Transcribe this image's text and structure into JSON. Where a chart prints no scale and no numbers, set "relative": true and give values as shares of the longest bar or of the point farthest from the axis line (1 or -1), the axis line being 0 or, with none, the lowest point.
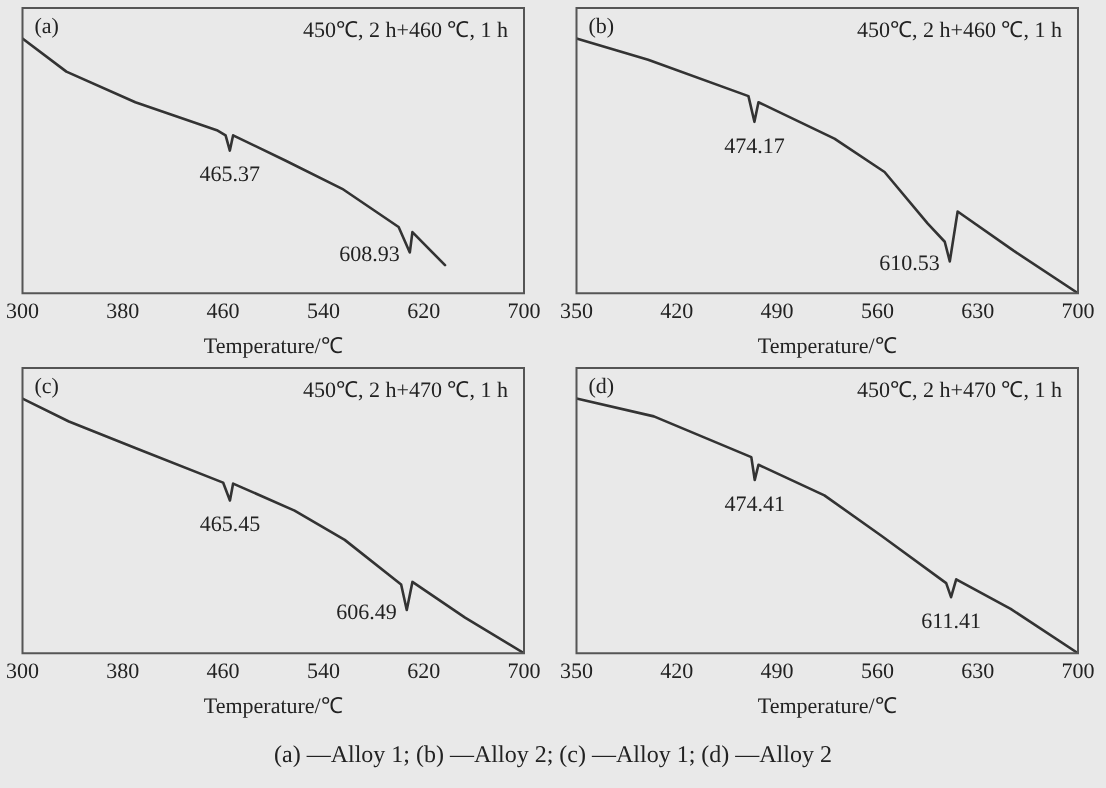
{
  "chart_data": [
    {
      "type": "line",
      "title": "(a)",
      "subtitle": "450℃, 2 h+460 ℃, 1 h",
      "xlabel": "Temperature/℃",
      "relative": true,
      "tick_labels": "x",
      "marker": "none",
      "line_style": "solid",
      "grid": false,
      "legend": false,
      "xlim": [
        300,
        700
      ],
      "xticks": [
        300,
        380,
        460,
        540,
        620,
        700
      ],
      "x": [
        300,
        335,
        390,
        455,
        462,
        465.37,
        468,
        510,
        555,
        600,
        608.93,
        611,
        637
      ],
      "series": [
        {
          "color": "#333333",
          "values": [
            1,
            0.87,
            0.75,
            0.64,
            0.62,
            0.56,
            0.62,
            0.52,
            0.41,
            0.26,
            0.16,
            0.24,
            0.11
          ]
        }
      ],
      "annotations": [
        {
          "text": "465.37",
          "x": 465.37,
          "y": 0.56
        },
        {
          "text": "608.93",
          "x": 608.93,
          "y": 0.16
        }
      ]
    },
    {
      "type": "line",
      "title": "(b)",
      "subtitle": "450℃, 2 h+460 ℃, 1 h",
      "xlabel": "Temperature/℃",
      "relative": true,
      "tick_labels": "x",
      "marker": "none",
      "line_style": "solid",
      "grid": false,
      "legend": false,
      "xlim": [
        350,
        700
      ],
      "xticks": [
        350,
        420,
        490,
        560,
        630,
        700
      ],
      "x": [
        350,
        400,
        470,
        474.17,
        477,
        530,
        565,
        595,
        607,
        610.53,
        616,
        655,
        700
      ],
      "series": [
        {
          "color": "#333333",
          "values": [
            1,
            0.917,
            0.774,
            0.673,
            0.75,
            0.607,
            0.476,
            0.274,
            0.202,
            0.125,
            0.321,
            0.167,
            0
          ]
        }
      ],
      "annotations": [
        {
          "text": "474.17",
          "x": 474.17,
          "y": 0.673
        },
        {
          "text": "610.53",
          "x": 610.53,
          "y": 0.125
        }
      ]
    },
    {
      "type": "line",
      "title": "(c)",
      "subtitle": "450℃, 2 h+470 ℃, 1 h",
      "xlabel": "Temperature/℃",
      "relative": true,
      "tick_labels": "x",
      "marker": "none",
      "line_style": "solid",
      "grid": false,
      "legend": false,
      "xlim": [
        300,
        700
      ],
      "xticks": [
        300,
        380,
        460,
        540,
        620,
        700
      ],
      "x": [
        300,
        337,
        393,
        460,
        465.45,
        468,
        517,
        557,
        602,
        606.49,
        611,
        653,
        700
      ],
      "series": [
        {
          "color": "#333333",
          "values": [
            1,
            0.91,
            0.8,
            0.67,
            0.6,
            0.666,
            0.56,
            0.445,
            0.27,
            0.17,
            0.28,
            0.14,
            0
          ]
        }
      ],
      "annotations": [
        {
          "text": "465.45",
          "x": 465.45,
          "y": 0.6
        },
        {
          "text": "606.49",
          "x": 606.49,
          "y": 0.17
        }
      ]
    },
    {
      "type": "line",
      "title": "(d)",
      "subtitle": "450℃, 2 h+470 ℃, 1 h",
      "xlabel": "Temperature/℃",
      "relative": true,
      "tick_labels": "x",
      "marker": "none",
      "line_style": "solid",
      "grid": false,
      "legend": false,
      "xlim": [
        350,
        700
      ],
      "xticks": [
        350,
        420,
        490,
        560,
        630,
        700
      ],
      "x": [
        350,
        404,
        472,
        474.41,
        477,
        523,
        563,
        608,
        611.41,
        615,
        653,
        700
      ],
      "series": [
        {
          "color": "#333333",
          "values": [
            1,
            0.93,
            0.77,
            0.68,
            0.74,
            0.62,
            0.46,
            0.275,
            0.22,
            0.29,
            0.174,
            0
          ]
        }
      ],
      "annotations": [
        {
          "text": "474.41",
          "x": 474.41,
          "y": 0.68
        },
        {
          "text": "611.41",
          "x": 611.41,
          "y": 0.22
        },
        "(a) —Alloy 1; (b) —Alloy 2; (c) —Alloy 1; (d) —Alloy 2"
      ]
    }
  ]
}
